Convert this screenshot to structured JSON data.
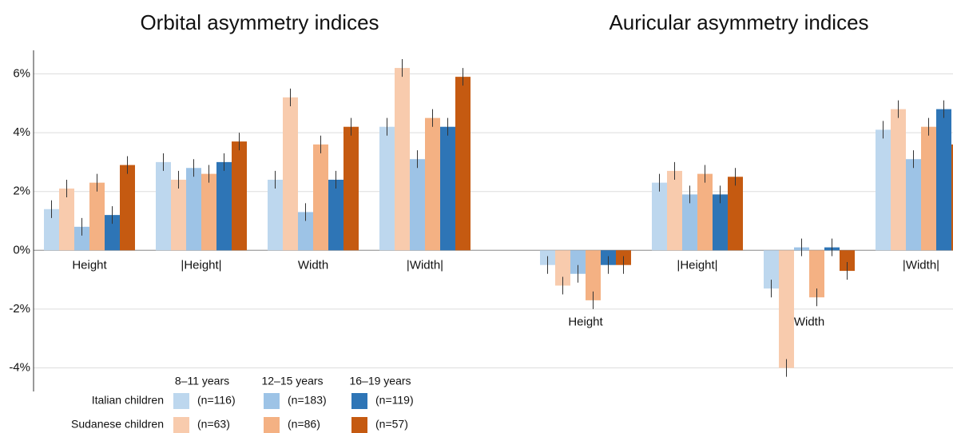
{
  "chart_data": [
    {
      "type": "bar",
      "title": "Orbital asymmetry indices",
      "categories": [
        "Height",
        "|Height|",
        "Width",
        "|Width|"
      ],
      "series": [
        {
          "label": "(n=116)",
          "color": "#bdd7ee",
          "values": [
            1.4,
            3.0,
            2.4,
            4.2
          ],
          "errors": [
            0.3,
            0.3,
            0.3,
            0.3
          ]
        },
        {
          "label": "(n=63)",
          "color": "#f8cbad",
          "values": [
            2.1,
            2.4,
            5.2,
            6.2
          ],
          "errors": [
            0.3,
            0.3,
            0.3,
            0.3
          ]
        },
        {
          "label": "(n=183)",
          "color": "#9dc3e6",
          "values": [
            0.8,
            2.8,
            1.3,
            3.1
          ],
          "errors": [
            0.3,
            0.3,
            0.3,
            0.3
          ]
        },
        {
          "label": "(n=86)",
          "color": "#f4b183",
          "values": [
            2.3,
            2.6,
            3.6,
            4.5
          ],
          "errors": [
            0.3,
            0.3,
            0.3,
            0.3
          ]
        },
        {
          "label": "(n=119)",
          "color": "#2e75b6",
          "values": [
            1.2,
            3.0,
            2.4,
            4.2
          ],
          "errors": [
            0.3,
            0.3,
            0.3,
            0.3
          ]
        },
        {
          "label": "(n=57)",
          "color": "#c55a11",
          "values": [
            2.9,
            3.7,
            4.2,
            5.9
          ],
          "errors": [
            0.3,
            0.3,
            0.3,
            0.3
          ]
        }
      ],
      "ylim": [
        -4.8,
        6.8
      ],
      "yticks": [
        {
          "value": -4,
          "label": "-4%"
        },
        {
          "value": -2,
          "label": "-2%"
        },
        {
          "value": 0,
          "label": "0%"
        },
        {
          "value": 2,
          "label": "2%"
        },
        {
          "value": 4,
          "label": "4%"
        },
        {
          "value": 6,
          "label": "6%"
        }
      ],
      "grid": true,
      "legend": {
        "columns": [
          "8–11 years",
          "12–15 years",
          "16–19 years"
        ],
        "rows": [
          "Italian children",
          "Sudanese children"
        ]
      }
    },
    {
      "type": "bar",
      "title": "Auricular asymmetry indices",
      "categories": [
        "Height",
        "|Height|",
        "Width",
        "|Width|"
      ],
      "series": [
        {
          "color": "#bdd7ee",
          "values": [
            -0.5,
            2.3,
            -1.3,
            4.1
          ],
          "errors": [
            0.3,
            0.3,
            0.3,
            0.3
          ]
        },
        {
          "color": "#f8cbad",
          "values": [
            -1.2,
            2.7,
            -4.0,
            4.8
          ],
          "errors": [
            0.3,
            0.3,
            0.3,
            0.3
          ]
        },
        {
          "color": "#9dc3e6",
          "values": [
            -0.8,
            1.9,
            0.1,
            3.1
          ],
          "errors": [
            0.3,
            0.3,
            0.3,
            0.3
          ]
        },
        {
          "color": "#f4b183",
          "values": [
            -1.7,
            2.6,
            -1.6,
            4.2
          ],
          "errors": [
            0.3,
            0.3,
            0.3,
            0.3
          ]
        },
        {
          "color": "#2e75b6",
          "values": [
            -0.5,
            1.9,
            0.1,
            4.8
          ],
          "errors": [
            0.3,
            0.3,
            0.3,
            0.3
          ]
        },
        {
          "color": "#c55a11",
          "values": [
            -0.5,
            2.5,
            -0.7,
            3.6
          ],
          "errors": [
            0.3,
            0.3,
            0.3,
            0.3
          ]
        }
      ],
      "ylim": [
        -4.8,
        6.8
      ]
    }
  ]
}
